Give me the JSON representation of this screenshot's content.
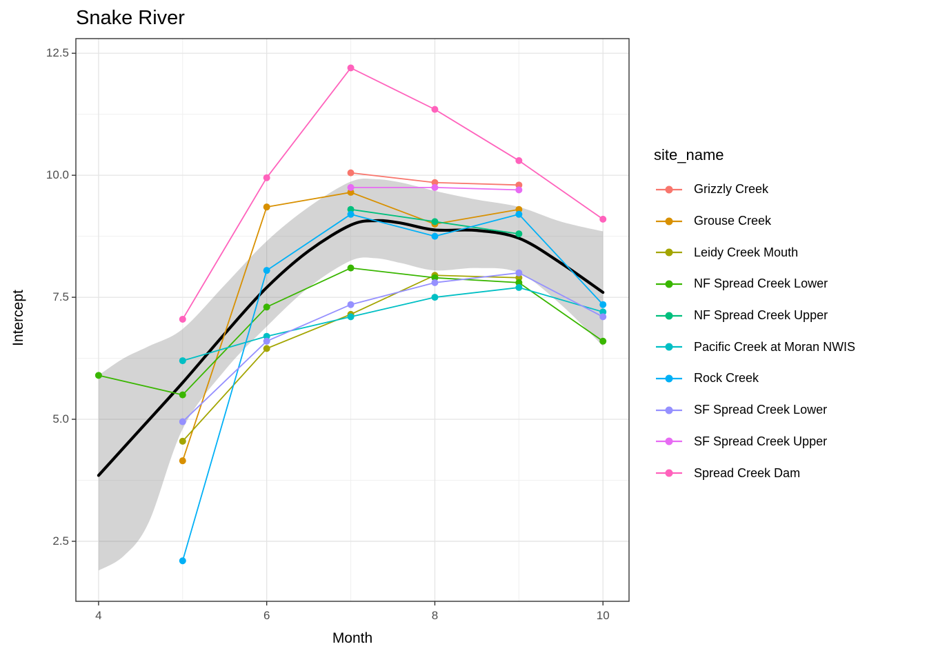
{
  "title": "Snake River",
  "chart_data": {
    "type": "line",
    "title": "Snake River",
    "xlabel": "Month",
    "ylabel": "Intercept",
    "xlim": [
      3.73,
      10.31
    ],
    "ylim": [
      1.27,
      12.8
    ],
    "grid": true,
    "legend_title": "site_name",
    "legend_position": "right",
    "x_ticks": [
      {
        "value": 4,
        "label": "4"
      },
      {
        "value": 6,
        "label": "6"
      },
      {
        "value": 8,
        "label": "8"
      },
      {
        "value": 10,
        "label": "10"
      }
    ],
    "y_ticks": [
      {
        "value": 2.5,
        "label": "2.5"
      },
      {
        "value": 5.0,
        "label": "5.0"
      },
      {
        "value": 7.5,
        "label": "7.5"
      },
      {
        "value": 10.0,
        "label": "10.0"
      },
      {
        "value": 12.5,
        "label": "12.5"
      }
    ],
    "x_minor": [
      5,
      7,
      9
    ],
    "y_minor": [
      3.75,
      6.25,
      8.75,
      11.25
    ],
    "series": [
      {
        "name": "Grizzly Creek",
        "color": "#F8766D",
        "points": [
          [
            7,
            10.05
          ],
          [
            8,
            9.85
          ],
          [
            9,
            9.8
          ]
        ]
      },
      {
        "name": "Grouse Creek",
        "color": "#D89000",
        "points": [
          [
            5,
            4.15
          ],
          [
            6,
            9.35
          ],
          [
            7,
            9.65
          ],
          [
            8,
            9.0
          ],
          [
            9,
            9.3
          ]
        ]
      },
      {
        "name": "Leidy Creek Mouth",
        "color": "#A3A500",
        "points": [
          [
            5,
            4.55
          ],
          [
            6,
            6.45
          ],
          [
            7,
            7.15
          ],
          [
            8,
            7.95
          ],
          [
            9,
            7.9
          ]
        ]
      },
      {
        "name": "NF Spread Creek Lower",
        "color": "#39B600",
        "points": [
          [
            4,
            5.9
          ],
          [
            5,
            5.5
          ],
          [
            6,
            7.3
          ],
          [
            7,
            8.1
          ],
          [
            8,
            7.9
          ],
          [
            9,
            7.8
          ],
          [
            10,
            6.6
          ]
        ]
      },
      {
        "name": "NF Spread Creek Upper",
        "color": "#00BF7D",
        "points": [
          [
            7,
            9.3
          ],
          [
            8,
            9.05
          ],
          [
            9,
            8.8
          ]
        ]
      },
      {
        "name": "Pacific Creek at Moran NWIS",
        "color": "#00BFC4",
        "points": [
          [
            5,
            6.2
          ],
          [
            6,
            6.7
          ],
          [
            7,
            7.1
          ],
          [
            8,
            7.5
          ],
          [
            9,
            7.7
          ],
          [
            10,
            7.2
          ]
        ]
      },
      {
        "name": "Rock Creek",
        "color": "#00B0F6",
        "points": [
          [
            5,
            2.1
          ],
          [
            6,
            8.05
          ],
          [
            7,
            9.2
          ],
          [
            8,
            8.75
          ],
          [
            9,
            9.2
          ],
          [
            10,
            7.35
          ]
        ]
      },
      {
        "name": "SF Spread Creek Lower",
        "color": "#9590FF",
        "points": [
          [
            5,
            4.95
          ],
          [
            6,
            6.6
          ],
          [
            7,
            7.35
          ],
          [
            8,
            7.8
          ],
          [
            9,
            8.0
          ],
          [
            10,
            7.1
          ]
        ]
      },
      {
        "name": "SF Spread Creek Upper",
        "color": "#E76BF3",
        "points": [
          [
            7,
            9.75
          ],
          [
            8,
            9.75
          ],
          [
            9,
            9.7
          ]
        ]
      },
      {
        "name": "Spread Creek Dam",
        "color": "#FF62BC",
        "points": [
          [
            5,
            7.05
          ],
          [
            6,
            9.95
          ],
          [
            7,
            12.2
          ],
          [
            8,
            11.35
          ],
          [
            9,
            10.3
          ],
          [
            10,
            9.1
          ]
        ]
      }
    ],
    "smooth": {
      "name": "loess-fit",
      "color": "#000000",
      "points": [
        [
          4,
          3.85
        ],
        [
          4.5,
          4.8
        ],
        [
          5,
          5.75
        ],
        [
          5.5,
          6.75
        ],
        [
          6,
          7.7
        ],
        [
          6.5,
          8.45
        ],
        [
          7,
          8.98
        ],
        [
          7.3,
          9.07
        ],
        [
          7.6,
          9.02
        ],
        [
          8,
          8.88
        ],
        [
          8.5,
          8.87
        ],
        [
          9,
          8.71
        ],
        [
          9.5,
          8.2
        ],
        [
          10,
          7.6
        ]
      ]
    },
    "ribbon": {
      "name": "confidence-band",
      "fill": "rgba(125,125,125,0.33)",
      "x": [
        4,
        4.3,
        4.6,
        5,
        5.5,
        6,
        6.5,
        7,
        7.3,
        7.6,
        8,
        8.5,
        9,
        9.5,
        10
      ],
      "top": [
        5.9,
        6.25,
        6.5,
        6.85,
        7.75,
        8.65,
        9.35,
        9.87,
        9.92,
        9.85,
        9.68,
        9.5,
        9.35,
        9.05,
        8.85
      ],
      "bottom": [
        1.9,
        2.2,
        2.9,
        4.8,
        6.0,
        6.9,
        7.7,
        8.25,
        8.3,
        8.2,
        8.05,
        8.1,
        8.0,
        7.35,
        6.5
      ]
    },
    "style": {
      "grid_major_color": "#E4E4E4",
      "grid_minor_color": "#F0F0F0",
      "panel_border_color": "#333333",
      "tick_color": "#333333",
      "tick_label_color": "#4d4d4d"
    }
  }
}
